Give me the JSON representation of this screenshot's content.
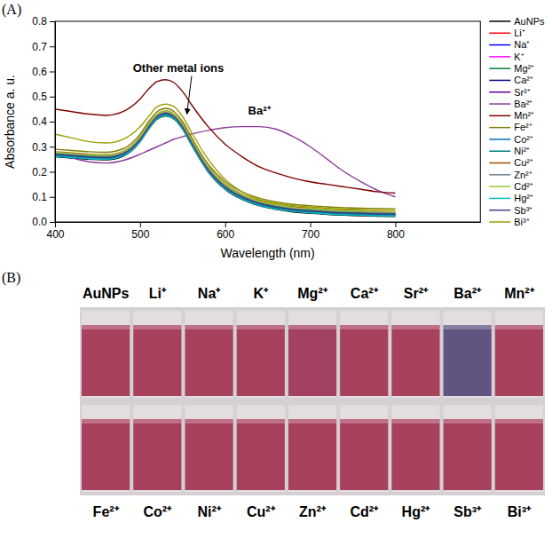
{
  "chart_data": {
    "type": "line",
    "panel_label": "(A)",
    "x_label": "Wavelength (nm)",
    "y_label": "Absorbance a. u.",
    "xlim": [
      400,
      900
    ],
    "xticks": [
      400,
      500,
      600,
      700,
      800
    ],
    "ylim": [
      0,
      0.8
    ],
    "yticks": [
      {
        "value": 0,
        "label": "0.0"
      },
      0.1,
      0.2,
      0.3,
      0.4,
      0.5,
      0.6,
      0.7,
      0.8
    ],
    "grid": false,
    "legend": "right",
    "annotations": [
      {
        "text": "Other metal ions",
        "x": 545,
        "y": 0.6,
        "arrow_to": [
          555,
          0.43
        ]
      },
      {
        "text": "Ba²⁺",
        "x": 640,
        "y": 0.43
      }
    ],
    "x": [
      400,
      420,
      440,
      460,
      480,
      500,
      510,
      520,
      530,
      540,
      550,
      560,
      580,
      600,
      620,
      640,
      660,
      680,
      700,
      720,
      740,
      760,
      780,
      800
    ],
    "series": [
      {
        "name": "AuNPs",
        "color": "#000000",
        "values": [
          0.26,
          0.255,
          0.25,
          0.248,
          0.262,
          0.32,
          0.37,
          0.41,
          0.423,
          0.41,
          0.37,
          0.31,
          0.2,
          0.13,
          0.09,
          0.065,
          0.05,
          0.04,
          0.035,
          0.03,
          0.027,
          0.025,
          0.023,
          0.022
        ]
      },
      {
        "name": "Li⁺",
        "color": "#ff0000",
        "values": [
          0.265,
          0.26,
          0.255,
          0.253,
          0.267,
          0.325,
          0.375,
          0.415,
          0.428,
          0.415,
          0.375,
          0.315,
          0.205,
          0.135,
          0.095,
          0.07,
          0.055,
          0.045,
          0.04,
          0.035,
          0.032,
          0.03,
          0.028,
          0.027
        ]
      },
      {
        "name": "Na⁺",
        "color": "#0000ff",
        "values": [
          0.27,
          0.265,
          0.26,
          0.258,
          0.272,
          0.33,
          0.38,
          0.42,
          0.433,
          0.42,
          0.38,
          0.32,
          0.21,
          0.14,
          0.1,
          0.075,
          0.06,
          0.05,
          0.045,
          0.04,
          0.037,
          0.035,
          0.033,
          0.032
        ]
      },
      {
        "name": "K⁺",
        "color": "#ff00ff",
        "values": [
          0.268,
          0.263,
          0.258,
          0.256,
          0.27,
          0.328,
          0.378,
          0.418,
          0.431,
          0.418,
          0.378,
          0.318,
          0.208,
          0.138,
          0.098,
          0.073,
          0.058,
          0.048,
          0.043,
          0.038,
          0.035,
          0.033,
          0.031,
          0.03
        ]
      },
      {
        "name": "Mg²⁺",
        "color": "#008040",
        "values": [
          0.272,
          0.267,
          0.262,
          0.26,
          0.274,
          0.332,
          0.382,
          0.422,
          0.435,
          0.422,
          0.382,
          0.322,
          0.212,
          0.142,
          0.102,
          0.077,
          0.062,
          0.052,
          0.047,
          0.042,
          0.039,
          0.037,
          0.035,
          0.034
        ]
      },
      {
        "name": "Ca²⁺",
        "color": "#000080",
        "values": [
          0.266,
          0.261,
          0.256,
          0.254,
          0.268,
          0.326,
          0.376,
          0.416,
          0.429,
          0.416,
          0.376,
          0.316,
          0.206,
          0.136,
          0.096,
          0.071,
          0.056,
          0.046,
          0.041,
          0.036,
          0.033,
          0.031,
          0.029,
          0.028
        ]
      },
      {
        "name": "Sr²⁺",
        "color": "#660099",
        "values": [
          0.264,
          0.259,
          0.254,
          0.252,
          0.266,
          0.324,
          0.374,
          0.414,
          0.427,
          0.414,
          0.374,
          0.314,
          0.204,
          0.134,
          0.094,
          0.069,
          0.054,
          0.044,
          0.039,
          0.034,
          0.031,
          0.029,
          0.027,
          0.026
        ]
      },
      {
        "name": "Ba²⁺",
        "color": "#8b3a9b",
        "values": [
          0.27,
          0.255,
          0.24,
          0.235,
          0.245,
          0.27,
          0.285,
          0.3,
          0.315,
          0.33,
          0.34,
          0.35,
          0.365,
          0.376,
          0.38,
          0.38,
          0.37,
          0.34,
          0.3,
          0.25,
          0.2,
          0.16,
          0.125,
          0.1
        ]
      },
      {
        "name": "Mn²⁺",
        "color": "#800000",
        "values": [
          0.45,
          0.44,
          0.43,
          0.425,
          0.44,
          0.49,
          0.53,
          0.56,
          0.567,
          0.555,
          0.52,
          0.47,
          0.38,
          0.31,
          0.26,
          0.22,
          0.195,
          0.175,
          0.16,
          0.15,
          0.14,
          0.13,
          0.12,
          0.115
        ]
      },
      {
        "name": "Fe²⁺",
        "color": "#808000",
        "values": [
          0.29,
          0.285,
          0.28,
          0.278,
          0.292,
          0.35,
          0.4,
          0.44,
          0.453,
          0.44,
          0.4,
          0.34,
          0.23,
          0.16,
          0.12,
          0.095,
          0.08,
          0.07,
          0.065,
          0.06,
          0.057,
          0.055,
          0.053,
          0.052
        ]
      },
      {
        "name": "Co²⁺",
        "color": "#0070c0",
        "values": [
          0.263,
          0.258,
          0.253,
          0.251,
          0.265,
          0.323,
          0.373,
          0.413,
          0.426,
          0.413,
          0.373,
          0.313,
          0.203,
          0.133,
          0.093,
          0.068,
          0.053,
          0.043,
          0.038,
          0.033,
          0.03,
          0.028,
          0.026,
          0.025
        ]
      },
      {
        "name": "Ni²⁺",
        "color": "#008080",
        "values": [
          0.267,
          0.262,
          0.257,
          0.255,
          0.269,
          0.327,
          0.377,
          0.417,
          0.43,
          0.417,
          0.377,
          0.317,
          0.207,
          0.137,
          0.097,
          0.072,
          0.057,
          0.047,
          0.042,
          0.037,
          0.034,
          0.032,
          0.03,
          0.029
        ]
      },
      {
        "name": "Cu²⁺",
        "color": "#a05000",
        "values": [
          0.28,
          0.275,
          0.27,
          0.268,
          0.282,
          0.34,
          0.39,
          0.43,
          0.443,
          0.43,
          0.39,
          0.33,
          0.22,
          0.15,
          0.11,
          0.085,
          0.07,
          0.06,
          0.055,
          0.05,
          0.047,
          0.045,
          0.043,
          0.042
        ]
      },
      {
        "name": "Zn²⁺",
        "color": "#708090",
        "values": [
          0.275,
          0.27,
          0.265,
          0.263,
          0.277,
          0.335,
          0.385,
          0.425,
          0.438,
          0.425,
          0.385,
          0.325,
          0.215,
          0.145,
          0.105,
          0.08,
          0.065,
          0.055,
          0.05,
          0.045,
          0.042,
          0.04,
          0.038,
          0.037
        ]
      },
      {
        "name": "Cd²⁺",
        "color": "#9acd32",
        "values": [
          0.278,
          0.273,
          0.268,
          0.266,
          0.28,
          0.338,
          0.388,
          0.428,
          0.441,
          0.428,
          0.388,
          0.328,
          0.218,
          0.148,
          0.108,
          0.083,
          0.068,
          0.058,
          0.053,
          0.048,
          0.045,
          0.043,
          0.041,
          0.04
        ]
      },
      {
        "name": "Hg²⁺",
        "color": "#00bfbf",
        "values": [
          0.262,
          0.257,
          0.252,
          0.25,
          0.264,
          0.322,
          0.372,
          0.412,
          0.425,
          0.412,
          0.372,
          0.312,
          0.202,
          0.132,
          0.092,
          0.067,
          0.052,
          0.042,
          0.037,
          0.032,
          0.029,
          0.027,
          0.025,
          0.024
        ]
      },
      {
        "name": "Sb³⁺",
        "color": "#483d8b",
        "values": [
          0.269,
          0.264,
          0.259,
          0.257,
          0.271,
          0.329,
          0.379,
          0.419,
          0.432,
          0.419,
          0.379,
          0.319,
          0.209,
          0.139,
          0.099,
          0.074,
          0.059,
          0.049,
          0.044,
          0.039,
          0.036,
          0.034,
          0.032,
          0.031
        ]
      },
      {
        "name": "Bi³⁺",
        "color": "#9aa000",
        "values": [
          0.35,
          0.335,
          0.32,
          0.315,
          0.33,
          0.38,
          0.42,
          0.46,
          0.47,
          0.46,
          0.42,
          0.36,
          0.25,
          0.17,
          0.12,
          0.09,
          0.075,
          0.065,
          0.06,
          0.055,
          0.052,
          0.05,
          0.05,
          0.05
        ]
      }
    ]
  },
  "vials": {
    "panel_label": "(B)",
    "rows": [
      {
        "labels": [
          "AuNPs",
          "Li⁺",
          "Na⁺",
          "K⁺",
          "Mg²⁺",
          "Ca²⁺",
          "Sr²⁺",
          "Ba²⁺",
          "Mn²⁺"
        ],
        "colors": [
          "#a8415c",
          "#a8415c",
          "#a8415c",
          "#a8415c",
          "#a34160",
          "#a8415c",
          "#a8415c",
          "#5f5580",
          "#a8415c"
        ]
      },
      {
        "labels": [
          "Fe²⁺",
          "Co²⁺",
          "Ni²⁺",
          "Cu²⁺",
          "Zn²⁺",
          "Cd²⁺",
          "Hg²⁺",
          "Sb³⁺",
          "Bi³⁺"
        ],
        "colors": [
          "#a8415c",
          "#a8415c",
          "#a8415c",
          "#a8415c",
          "#a8415c",
          "#a8415c",
          "#a8415c",
          "#a8415c",
          "#a8415c"
        ]
      }
    ]
  }
}
